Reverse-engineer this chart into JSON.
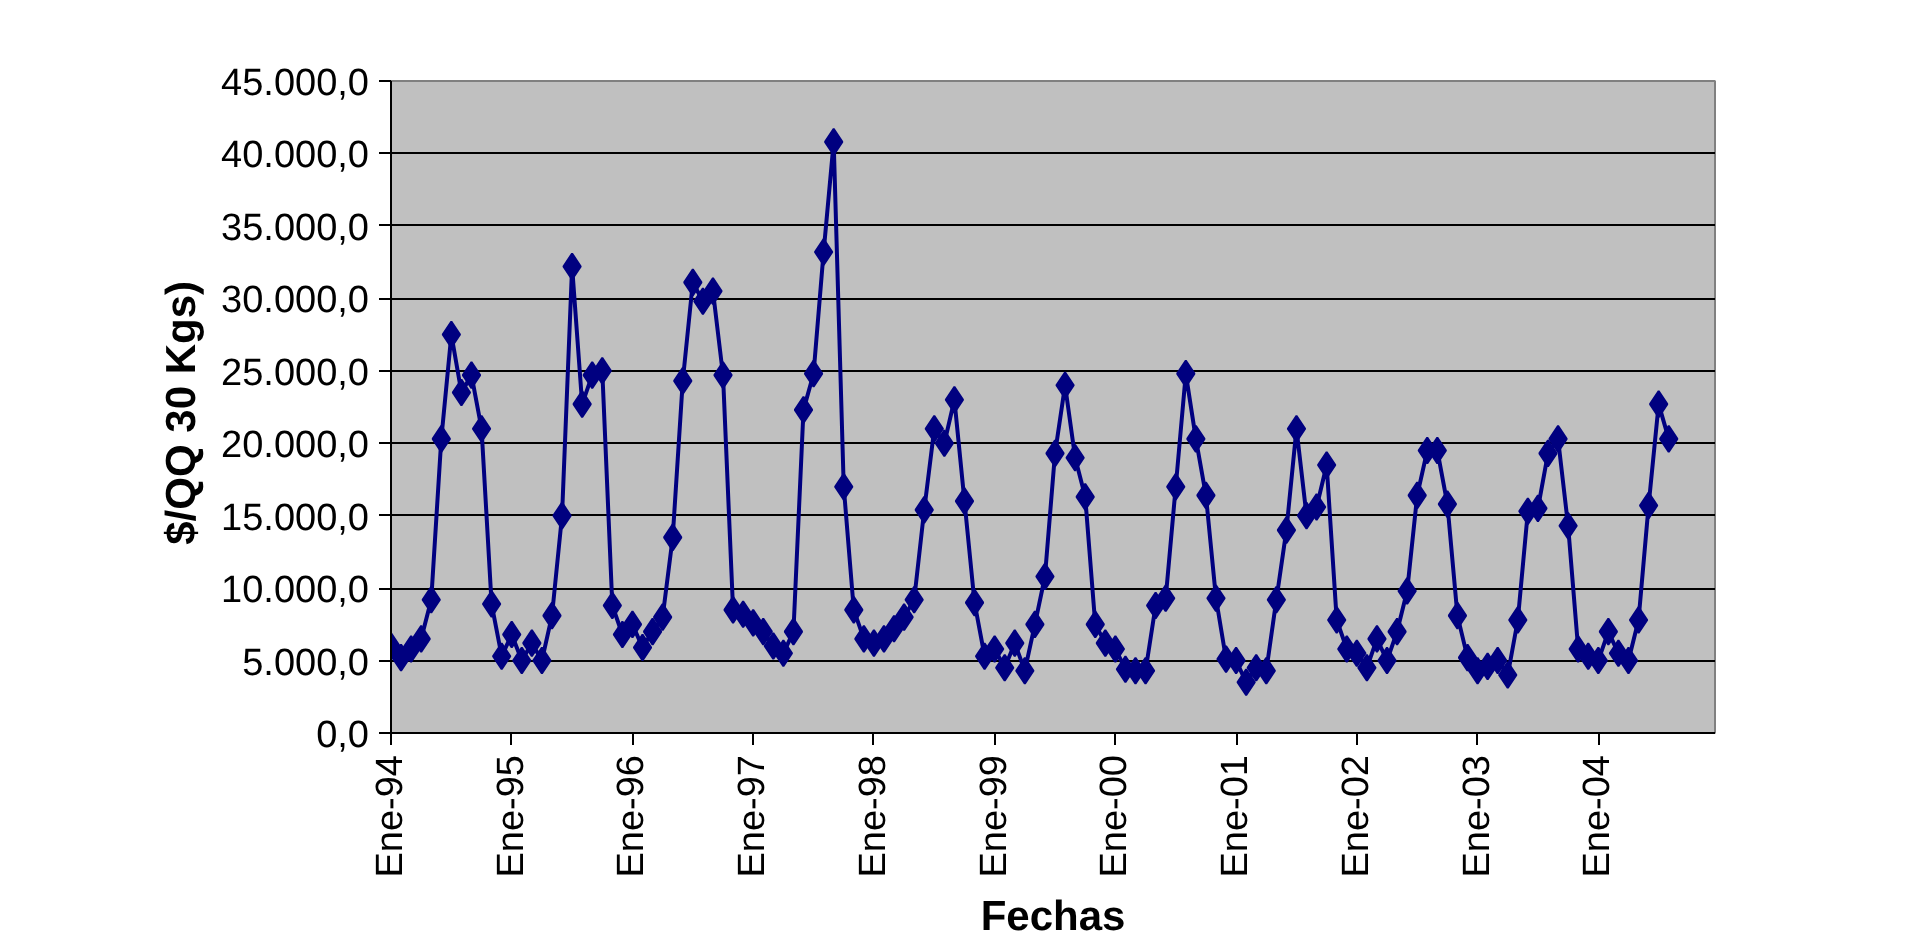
{
  "chart_data": {
    "type": "line",
    "xlabel": "Fechas",
    "ylabel": "$/QQ 30  Kgs)",
    "categories": [
      "Ene-94",
      null,
      null,
      null,
      null,
      null,
      null,
      null,
      null,
      null,
      null,
      null,
      "Ene-95",
      null,
      null,
      null,
      null,
      null,
      null,
      null,
      null,
      null,
      null,
      null,
      "Ene-96",
      null,
      null,
      null,
      null,
      null,
      null,
      null,
      null,
      null,
      null,
      null,
      "Ene-97",
      null,
      null,
      null,
      null,
      null,
      null,
      null,
      null,
      null,
      null,
      null,
      "Ene-98",
      null,
      null,
      null,
      null,
      null,
      null,
      null,
      null,
      null,
      null,
      null,
      "Ene-99",
      null,
      null,
      null,
      null,
      null,
      null,
      null,
      null,
      null,
      null,
      null,
      "Ene-00",
      null,
      null,
      null,
      null,
      null,
      null,
      null,
      null,
      null,
      null,
      null,
      "Ene-01",
      null,
      null,
      null,
      null,
      null,
      null,
      null,
      null,
      null,
      null,
      null,
      "Ene-02",
      null,
      null,
      null,
      null,
      null,
      null,
      null,
      null,
      null,
      null,
      null,
      "Ene-03",
      null,
      null,
      null,
      null,
      null,
      null,
      null,
      null,
      null,
      null,
      null,
      "Ene-04",
      null,
      null,
      null,
      null,
      null,
      null,
      null
    ],
    "series": [
      {
        "color": "#000080",
        "values": [
          6000,
          5200,
          5800,
          6500,
          9200,
          20300,
          27500,
          23500,
          24700,
          21000,
          8900,
          5300,
          6800,
          5000,
          6200,
          5000,
          8100,
          15000,
          32200,
          22700,
          24700,
          25000,
          8800,
          6800,
          7500,
          5900,
          7000,
          8000,
          13500,
          24300,
          31100,
          29800,
          30500,
          24700,
          8500,
          8200,
          7600,
          7000,
          6000,
          5500,
          7000,
          22300,
          24800,
          33200,
          40800,
          17000,
          8500,
          6500,
          6200,
          6500,
          7200,
          8000,
          9200,
          15400,
          21000,
          20000,
          23000,
          16000,
          9000,
          5300,
          5800,
          4500,
          6200,
          4300,
          7500,
          10800,
          19300,
          24000,
          19000,
          16300,
          7500,
          6200,
          5800,
          4400,
          4300,
          4300,
          8800,
          9300,
          17000,
          24800,
          20300,
          16400,
          9300,
          5100,
          5000,
          3500,
          4500,
          4300,
          9200,
          14000,
          21000,
          15000,
          15600,
          18500,
          7800,
          5800,
          5500,
          4500,
          6500,
          5000,
          7000,
          9800,
          16400,
          19500,
          19500,
          15800,
          8100,
          5200,
          4300,
          4600,
          5000,
          4000,
          7800,
          15300,
          15500,
          19300,
          20300,
          14300,
          5800,
          5300,
          5000,
          7000,
          5500,
          5000,
          7800,
          15700,
          22700,
          20300
        ]
      }
    ],
    "ylim": [
      0,
      45000
    ],
    "yticks": [
      {
        "value": 0,
        "label": "0,0"
      },
      {
        "value": 5000,
        "label": "5.000,0"
      },
      {
        "value": 10000,
        "label": "10.000,0"
      },
      {
        "value": 15000,
        "label": "15.000,0"
      },
      {
        "value": 20000,
        "label": "20.000,0"
      },
      {
        "value": 25000,
        "label": "25.000,0"
      },
      {
        "value": 30000,
        "label": "30.000,0"
      },
      {
        "value": 35000,
        "label": "35.000,0"
      },
      {
        "value": 40000,
        "label": "40.000,0"
      },
      {
        "value": 45000,
        "label": "45.000,0"
      }
    ],
    "grid": "y",
    "marker": "diamond",
    "line_style": "solid"
  }
}
